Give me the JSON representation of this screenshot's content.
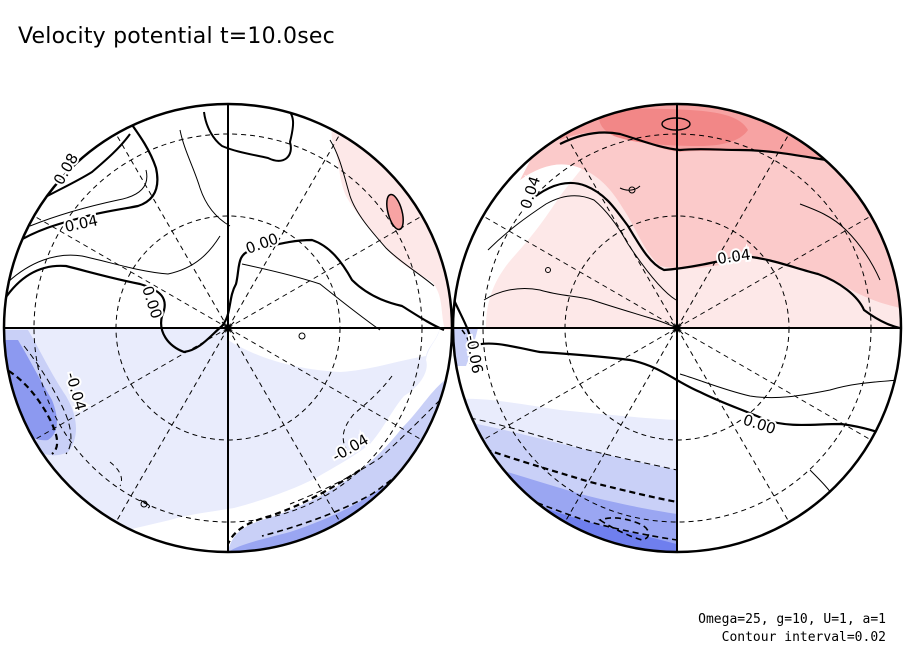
{
  "title": "Velocity potential t=10.0sec",
  "notes": {
    "params": "Omega=25, g=10, U=1, a=1",
    "interval": "Contour interval=0.02"
  },
  "colors": {
    "pos_light": "#fde8e8",
    "pos_mid": "#fbcaca",
    "pos_strong": "#f7a3a3",
    "pos_peak": "#f28787",
    "neg_light": "#e9ecfc",
    "neg_mid": "#c9d0f7",
    "neg_strong": "#9aa6f2",
    "neg_peak": "#6f7fee"
  },
  "chart_data": {
    "type": "contour",
    "title": "Velocity potential t=10.0sec",
    "contour_interval": 0.02,
    "projection": "orthographic, two hemispheres",
    "hemispheres": [
      {
        "name": "left",
        "contour_labels": [
          "0.08",
          "0.04",
          "0.00",
          "0.00",
          "-0.04",
          "-0.04"
        ]
      },
      {
        "name": "right",
        "contour_labels": [
          "0.04",
          "0.04",
          "0.00",
          "-0.06"
        ]
      }
    ]
  }
}
